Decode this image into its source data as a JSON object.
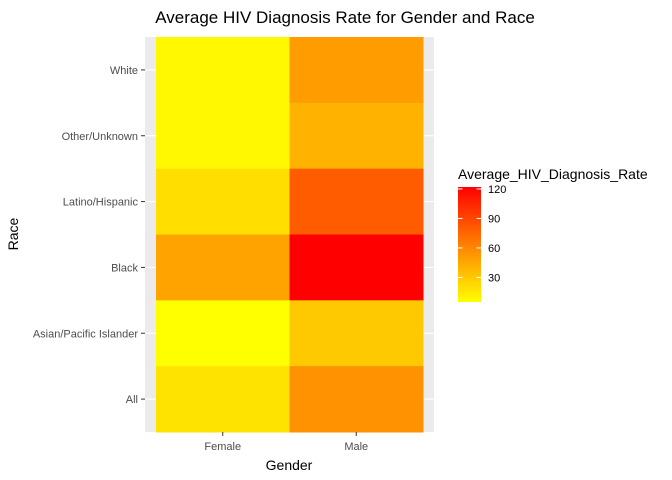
{
  "chart_data": {
    "type": "heatmap",
    "title": "Average HIV Diagnosis Rate for Gender and Race",
    "xlabel": "Gender",
    "ylabel": "Race",
    "x_categories": [
      "Female",
      "Male"
    ],
    "y_categories": [
      "All",
      "Asian/Pacific Islander",
      "Black",
      "Latino/Hispanic",
      "Other/Unknown",
      "White"
    ],
    "cells": [
      {
        "x": "Female",
        "y": "White",
        "value": 8
      },
      {
        "x": "Male",
        "y": "White",
        "value": 50
      },
      {
        "x": "Female",
        "y": "Other/Unknown",
        "value": 8
      },
      {
        "x": "Male",
        "y": "Other/Unknown",
        "value": 40
      },
      {
        "x": "Female",
        "y": "Latino/Hispanic",
        "value": 20
      },
      {
        "x": "Male",
        "y": "Latino/Hispanic",
        "value": 80
      },
      {
        "x": "Female",
        "y": "Black",
        "value": 47
      },
      {
        "x": "Male",
        "y": "Black",
        "value": 122
      },
      {
        "x": "Female",
        "y": "Asian/Pacific Islander",
        "value": 5
      },
      {
        "x": "Male",
        "y": "Asian/Pacific Islander",
        "value": 30
      },
      {
        "x": "Female",
        "y": "All",
        "value": 18
      },
      {
        "x": "Male",
        "y": "All",
        "value": 55
      }
    ],
    "legend": {
      "title": "Average_HIV_Diagnosis_Rate",
      "placement": "right",
      "breaks": [
        30,
        60,
        90,
        120
      ],
      "range": [
        5,
        122
      ],
      "low_color": "#ffff00",
      "high_color": "#ff0000"
    },
    "colors": {
      "panel_background": "#ebebeb",
      "grid": "#ffffff",
      "axis_text": "#4d4d4d"
    }
  }
}
